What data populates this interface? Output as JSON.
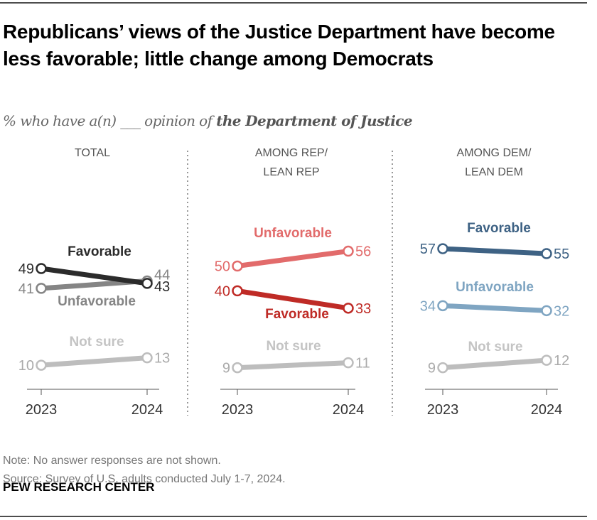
{
  "title": "Republicans’ views of the Justice Department have become less favorable; little change among Democrats",
  "subtitle_prefix": "% who have a(n) ___ opinion of ",
  "subtitle_emph": "the Department of Justice",
  "note": "Note: No answer responses are not shown.",
  "source": "Source: Survey of U.S. adults conducted July 1-7, 2024.",
  "brand": "PEW RESEARCH CENTER",
  "chart_data": [
    {
      "type": "line",
      "panel": "TOTAL",
      "header": [
        "TOTAL"
      ],
      "x": [
        "2023",
        "2024"
      ],
      "series": [
        {
          "name": "Favorable",
          "values": [
            49,
            43
          ],
          "color": "#2b2b2b"
        },
        {
          "name": "Unfavorable",
          "values": [
            41,
            44
          ],
          "color": "#858585"
        },
        {
          "name": "Not sure",
          "values": [
            10,
            13
          ],
          "color": "#bdbdbd"
        }
      ]
    },
    {
      "type": "line",
      "panel": "AMONG REP/LEAN REP",
      "header": [
        "AMONG REP/",
        "LEAN REP"
      ],
      "x": [
        "2023",
        "2024"
      ],
      "series": [
        {
          "name": "Unfavorable",
          "values": [
            50,
            56
          ],
          "color": "#e26b6b"
        },
        {
          "name": "Favorable",
          "values": [
            40,
            33
          ],
          "color": "#bf2b26"
        },
        {
          "name": "Not sure",
          "values": [
            9,
            11
          ],
          "color": "#bdbdbd"
        }
      ]
    },
    {
      "type": "line",
      "panel": "AMONG DEM/LEAN DEM",
      "header": [
        "AMONG DEM/",
        "LEAN DEM"
      ],
      "x": [
        "2023",
        "2024"
      ],
      "series": [
        {
          "name": "Favorable",
          "values": [
            57,
            55
          ],
          "color": "#3e6284"
        },
        {
          "name": "Unfavorable",
          "values": [
            34,
            32
          ],
          "color": "#7fa5c2"
        },
        {
          "name": "Not sure",
          "values": [
            9,
            12
          ],
          "color": "#bdbdbd"
        }
      ]
    }
  ]
}
